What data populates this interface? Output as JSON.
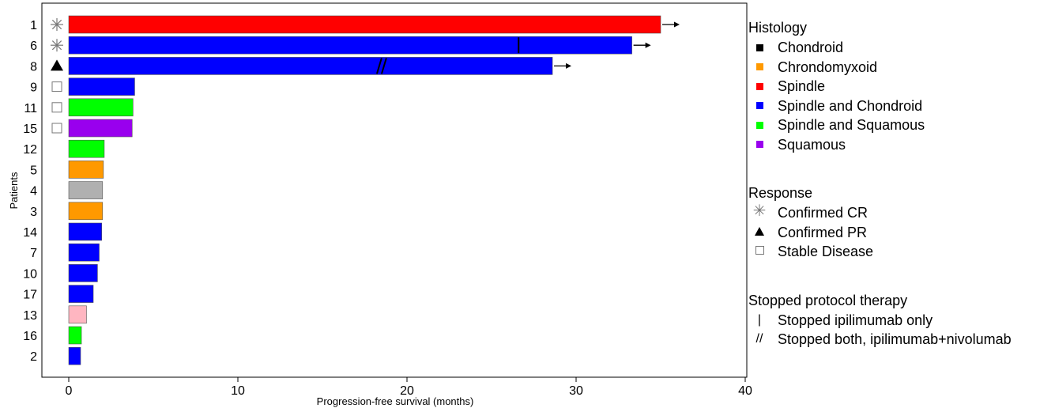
{
  "chart_data": {
    "type": "bar",
    "orientation": "horizontal",
    "xlabel": "Progression-free survival (months)",
    "ylabel": "Patients",
    "xlim": [
      0,
      40
    ],
    "xticks": [
      0,
      10,
      20,
      30,
      40
    ],
    "grid": false,
    "legend_position": "right",
    "categories": [
      "1",
      "6",
      "8",
      "9",
      "11",
      "15",
      "12",
      "5",
      "4",
      "3",
      "14",
      "7",
      "10",
      "17",
      "13",
      "16",
      "2"
    ],
    "values": [
      35.0,
      33.3,
      28.6,
      3.9,
      3.8,
      3.75,
      2.1,
      2.05,
      2.0,
      2.0,
      1.95,
      1.8,
      1.7,
      1.45,
      1.05,
      0.75,
      0.7
    ],
    "histology": [
      "Spindle",
      "Spindle and Chondroid",
      "Spindle and Chondroid",
      "Spindle and Chondroid",
      "Spindle and Squamous",
      "Squamous",
      "Spindle and Squamous",
      "Chrondomyxoid",
      "",
      "Chrondomyxoid",
      "Spindle and Chondroid",
      "Spindle and Chondroid",
      "Spindle and Chondroid",
      "Spindle and Chondroid",
      "",
      "Spindle and Squamous",
      "Spindle and Chondroid"
    ],
    "bar_colors": [
      "#ff0000",
      "#0000ff",
      "#0000ff",
      "#0000ff",
      "#00ff00",
      "#9900ee",
      "#00ff00",
      "#ff9900",
      "#b0b0b0",
      "#ff9900",
      "#0000ff",
      "#0000ff",
      "#0000ff",
      "#0000ff",
      "#ffb6c1",
      "#00ff00",
      "#0000ff"
    ],
    "response": [
      "Confirmed CR",
      "Confirmed CR",
      "Confirmed PR",
      "Stable Disease",
      "Stable Disease",
      "Stable Disease",
      "",
      "",
      "",
      "",
      "",
      "",
      "",
      "",
      "",
      "",
      ""
    ],
    "ongoing": [
      true,
      true,
      true,
      false,
      false,
      false,
      false,
      false,
      false,
      false,
      false,
      false,
      false,
      false,
      false,
      false,
      false
    ],
    "stopped": [
      {
        "patient": "6",
        "type": "Stopped ipilimumab only",
        "time": 26.6
      },
      {
        "patient": "8",
        "type": "Stopped both, ipilimumab+nivolumab",
        "time": 18.5
      }
    ]
  },
  "legend": {
    "histology_title": "Histology",
    "histology": [
      {
        "label": "Chondroid",
        "color": "#000000"
      },
      {
        "label": "Chrondomyxoid",
        "color": "#ff9900"
      },
      {
        "label": "Spindle",
        "color": "#ff0000"
      },
      {
        "label": "Spindle and Chondroid",
        "color": "#0000ff"
      },
      {
        "label": "Spindle and Squamous",
        "color": "#00ff00"
      },
      {
        "label": "Squamous",
        "color": "#9900ee"
      }
    ],
    "response_title": "Response",
    "response": [
      {
        "label": "Confirmed CR",
        "icon": "asterisk-icon"
      },
      {
        "label": "Confirmed PR",
        "icon": "triangle-icon"
      },
      {
        "label": "Stable Disease",
        "icon": "square-icon"
      }
    ],
    "stopped_title": "Stopped protocol therapy",
    "stopped": [
      {
        "label": "Stopped ipilimumab only",
        "symbol": "|"
      },
      {
        "label": "Stopped both, ipilimumab+nivolumab",
        "symbol": "//"
      }
    ]
  }
}
